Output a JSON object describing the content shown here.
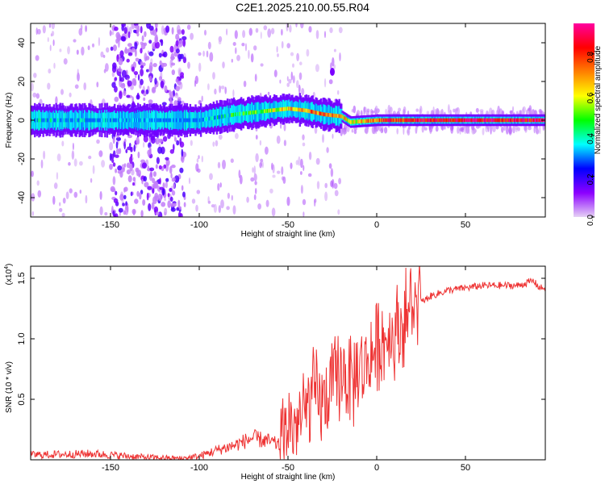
{
  "title": "C2E1.2025.210.00.55.R04",
  "chart_data": [
    {
      "type": "heatmap",
      "xlabel": "Height of straight line (km)",
      "ylabel": "Frequency (Hz)",
      "xlim": [
        -195,
        95
      ],
      "ylim": [
        -50,
        50
      ],
      "xticks": [
        -150,
        -100,
        -50,
        0,
        50
      ],
      "yticks": [
        -40,
        -20,
        0,
        20,
        40
      ],
      "colorbar": {
        "label": "Normalized spectral amplitude",
        "range": [
          0,
          0.95
        ],
        "ticks": [
          0.0,
          0.2,
          0.4,
          0.6,
          0.8
        ],
        "colormap": [
          "#e6d2f5",
          "#8c00ff",
          "#0000ff",
          "#00ffff",
          "#00ff00",
          "#ffff00",
          "#ff8000",
          "#ff0000",
          "#ff00a0"
        ]
      },
      "ridge": {
        "description_points_x": [
          -195,
          -150,
          -110,
          -100,
          -80,
          -60,
          -50,
          -40,
          -30,
          -20,
          -15,
          0,
          20,
          50,
          90
        ],
        "description_points_y": [
          0,
          0,
          0,
          0,
          3,
          5,
          6,
          5,
          3,
          2,
          -1,
          0,
          0,
          0,
          0
        ],
        "peak_amplitude": [
          0.35,
          0.3,
          0.25,
          0.3,
          0.45,
          0.55,
          0.7,
          0.75,
          0.8,
          0.7,
          0.6,
          0.8,
          0.9,
          0.9,
          0.9
        ]
      },
      "noise_band": {
        "x_range": [
          -150,
          -108
        ],
        "note": "broadband scattered noise"
      },
      "blip": {
        "x": -25,
        "y": 25,
        "amplitude": 0.1
      }
    },
    {
      "type": "line",
      "xlabel": "Height of straight line (km)",
      "ylabel": "SNR (10 * v/v)",
      "scale_note": "(x10",
      "scale_exp": "4",
      "xlim": [
        -195,
        95
      ],
      "ylim": [
        0,
        1.6
      ],
      "xticks": [
        -150,
        -100,
        -50,
        0,
        50
      ],
      "yticks": [
        0.5,
        1.0,
        1.5
      ],
      "color": "#ee3333",
      "series": [
        {
          "x": [
            -195,
            -160,
            -130,
            -110,
            -100,
            -90,
            -80,
            -70,
            -60,
            -55,
            -50,
            -45,
            -40,
            -35,
            -30,
            -25,
            -20,
            -18,
            -15,
            -10,
            -5,
            0,
            5,
            10,
            15,
            20,
            25,
            30,
            40,
            50,
            60,
            70,
            80,
            88,
            92
          ],
          "y": [
            0.04,
            0.05,
            0.02,
            0.01,
            0.03,
            0.08,
            0.12,
            0.18,
            0.15,
            0.12,
            0.3,
            0.28,
            0.4,
            0.55,
            0.45,
            0.6,
            0.7,
            0.75,
            0.6,
            0.75,
            0.8,
            0.95,
            1.0,
            1.05,
            1.15,
            1.25,
            1.3,
            1.35,
            1.4,
            1.42,
            1.44,
            1.44,
            1.44,
            1.48,
            1.42
          ]
        }
      ]
    }
  ]
}
